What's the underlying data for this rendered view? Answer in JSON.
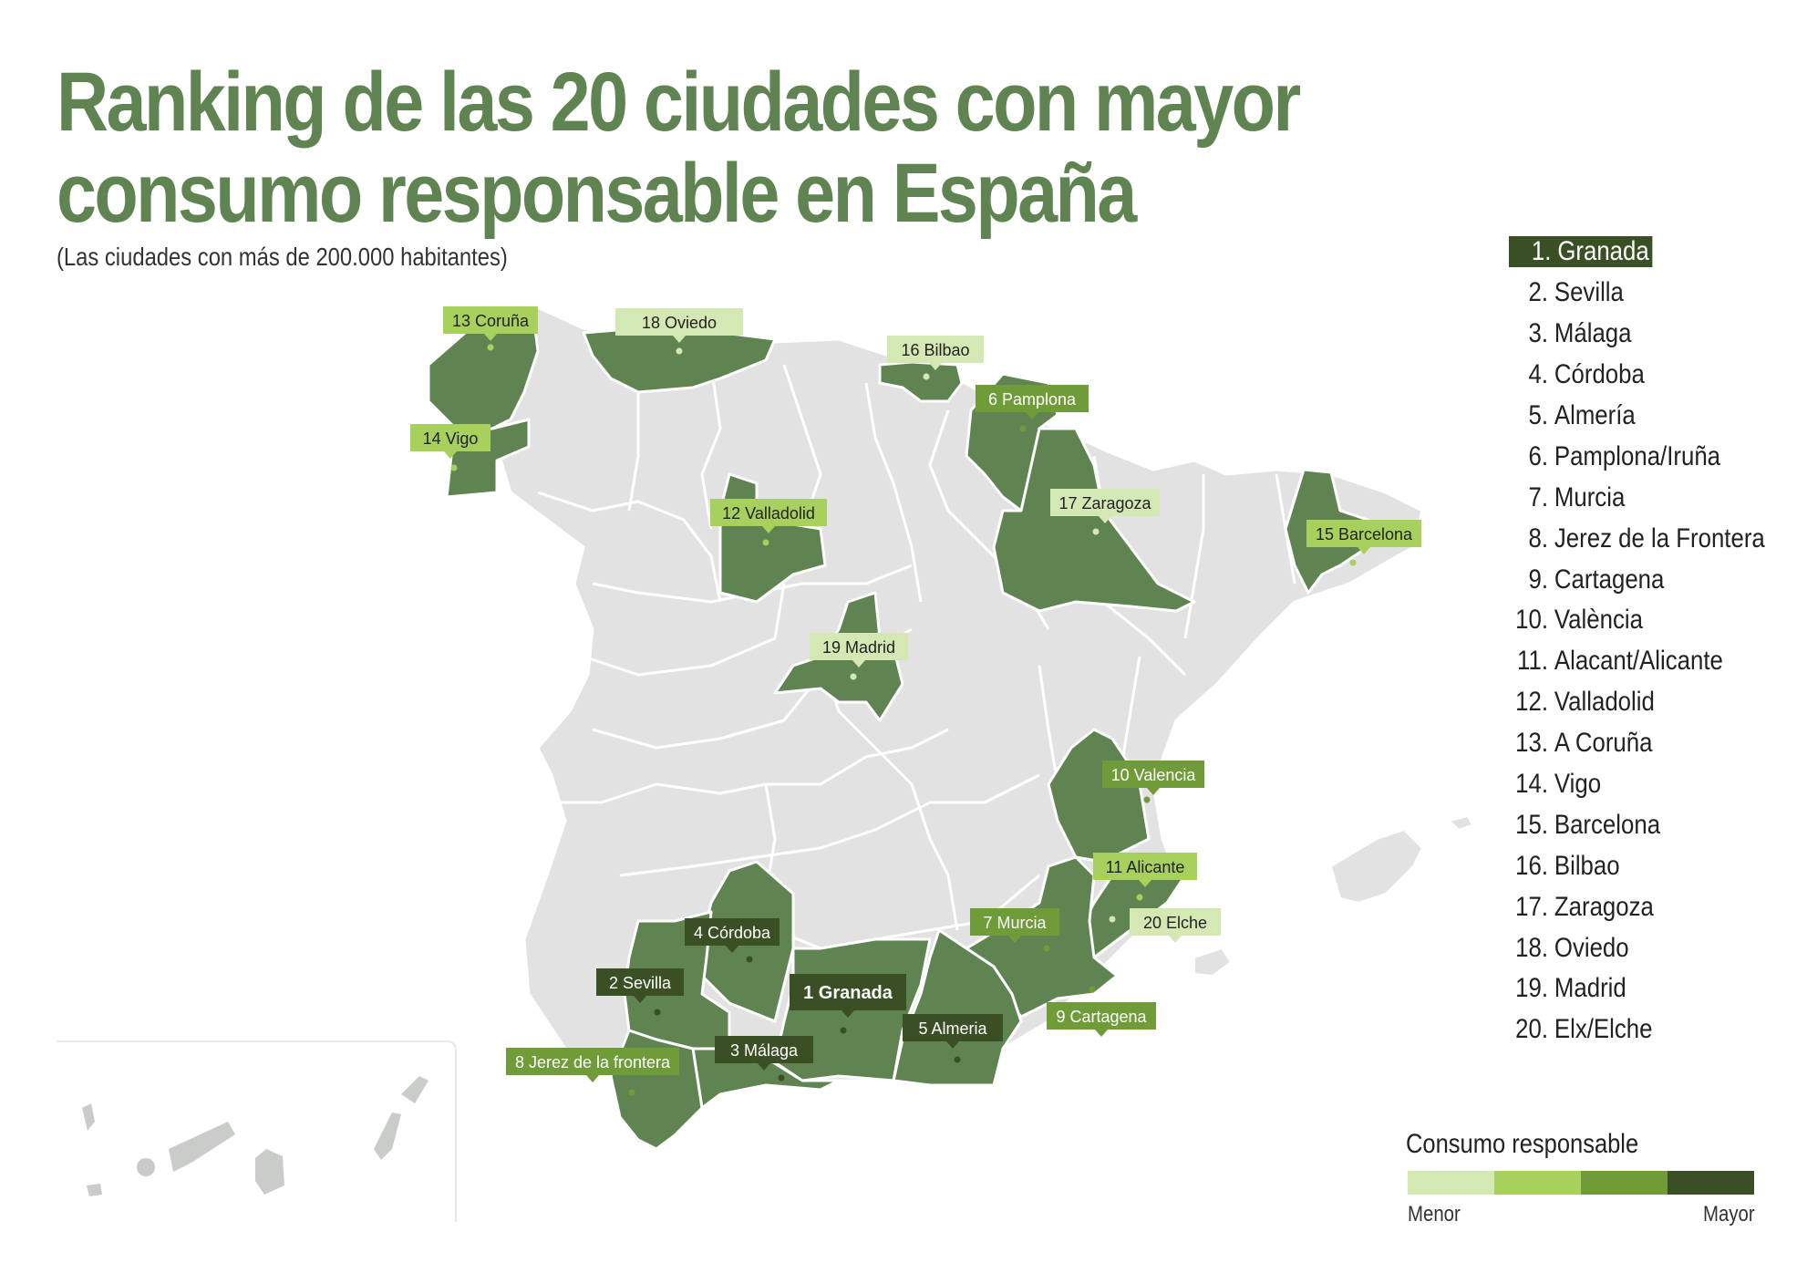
{
  "title": "Ranking de las 20 ciudades con mayor consumo responsable en España",
  "subtitle": "(Las ciudades con más de 200.000 habitantes)",
  "colors": {
    "level_1": "#d4e8b4",
    "level_2": "#a8d05c",
    "level_3": "#6f9c38",
    "level_4": "#3a5024",
    "province_fill": "#5f8451",
    "other_fill": "#e2e2e2",
    "title": "#5f8451"
  },
  "ranking": [
    {
      "num": "1.",
      "name": "Granada"
    },
    {
      "num": "2.",
      "name": "Sevilla"
    },
    {
      "num": "3.",
      "name": "Málaga"
    },
    {
      "num": "4.",
      "name": "Córdoba"
    },
    {
      "num": "5.",
      "name": "Almería"
    },
    {
      "num": "6.",
      "name": "Pamplona/Iruña"
    },
    {
      "num": "7.",
      "name": "Murcia"
    },
    {
      "num": "8.",
      "name": "Jerez de la Frontera"
    },
    {
      "num": "9.",
      "name": "Cartagena"
    },
    {
      "num": "10.",
      "name": " València"
    },
    {
      "num": "11.",
      "name": "Alacant/Alicante"
    },
    {
      "num": "12.",
      "name": "Valladolid"
    },
    {
      "num": "13.",
      "name": "A Coruña"
    },
    {
      "num": "14.",
      "name": "Vigo"
    },
    {
      "num": "15.",
      "name": "Barcelona"
    },
    {
      "num": "16.",
      "name": "Bilbao"
    },
    {
      "num": "17.",
      "name": "Zaragoza"
    },
    {
      "num": "18.",
      "name": "Oviedo"
    },
    {
      "num": "19.",
      "name": "Madrid"
    },
    {
      "num": "20.",
      "name": "Elx/Elche"
    }
  ],
  "map_labels": [
    {
      "text": "13 Coruña",
      "level": 2
    },
    {
      "text": "18 Oviedo",
      "level": 1
    },
    {
      "text": "16 Bilbao",
      "level": 1
    },
    {
      "text": "6 Pamplona",
      "level": 3
    },
    {
      "text": "14 Vigo",
      "level": 2
    },
    {
      "text": "12 Valladolid",
      "level": 2
    },
    {
      "text": "17 Zaragoza",
      "level": 1
    },
    {
      "text": "15 Barcelona",
      "level": 2
    },
    {
      "text": "19 Madrid",
      "level": 1
    },
    {
      "text": "10 Valencia",
      "level": 3
    },
    {
      "text": "11 Alicante",
      "level": 2
    },
    {
      "text": "20 Elche",
      "level": 1
    },
    {
      "text": "7 Murcia",
      "level": 3
    },
    {
      "text": "9 Cartagena",
      "level": 3
    },
    {
      "text": "4 Córdoba",
      "level": 4
    },
    {
      "text": "2 Sevilla",
      "level": 4
    },
    {
      "text": "1 Granada",
      "level": 4
    },
    {
      "text": "5 Almeria",
      "level": 4
    },
    {
      "text": "3 Málaga",
      "level": 4
    },
    {
      "text": "8 Jerez de la frontera",
      "level": 3
    }
  ],
  "legend": {
    "title": "Consumo responsable",
    "min_label": "Menor",
    "max_label": "Mayor"
  }
}
